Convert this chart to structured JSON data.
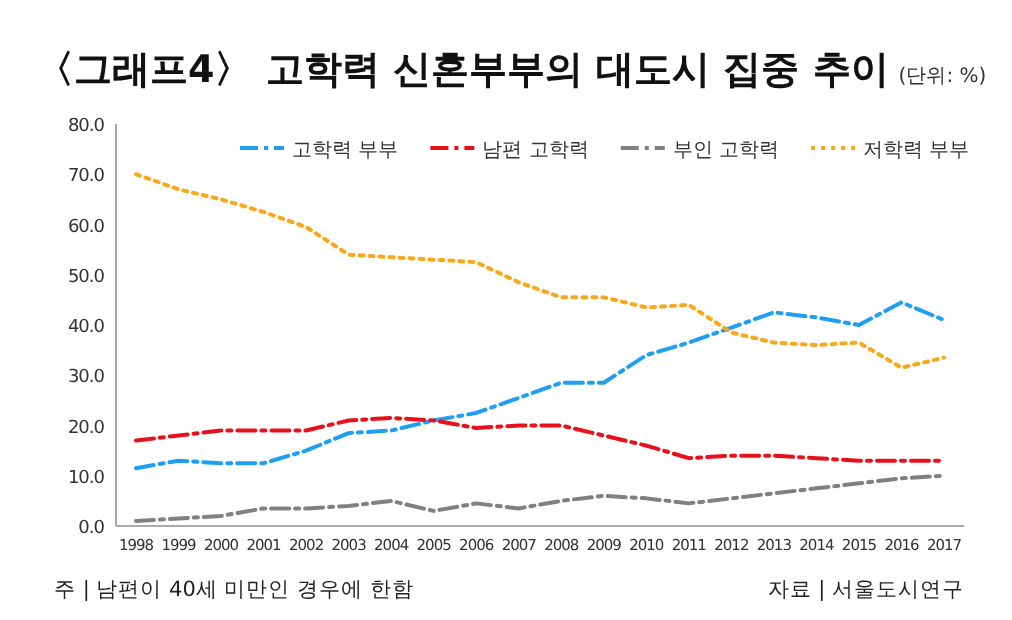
{
  "chart_data": {
    "type": "line",
    "title": "〈그래프4〉 고학력 신혼부부의 대도시 집중 추이",
    "subtitle": "(단위: %)",
    "categories": [
      "1998",
      "1999",
      "2000",
      "2001",
      "2002",
      "2003",
      "2004",
      "2005",
      "2006",
      "2007",
      "2008",
      "2009",
      "2010",
      "2011",
      "2012",
      "2013",
      "2014",
      "2015",
      "2016",
      "2017"
    ],
    "series": [
      {
        "name": "고학력 부부",
        "color": "#1e9ff2",
        "line_style": "dashed",
        "values": [
          11.5,
          13,
          12.5,
          12.5,
          15,
          18.5,
          19,
          21,
          22.5,
          25.5,
          28.5,
          28.5,
          34,
          36.5,
          39.5,
          42.5,
          41.5,
          40,
          44.5,
          41
        ]
      },
      {
        "name": "남편 고학력",
        "color": "#e8101a",
        "line_style": "dashed",
        "values": [
          17,
          18,
          19,
          19,
          19,
          21,
          21.5,
          21,
          19.5,
          20,
          20,
          18,
          16,
          13.5,
          14,
          14,
          13.5,
          13,
          13,
          13
        ]
      },
      {
        "name": "부인 고학력",
        "color": "#808080",
        "line_style": "dashed",
        "values": [
          1,
          1.5,
          2,
          3.5,
          3.5,
          4,
          5,
          3,
          4.5,
          3.5,
          5,
          6,
          5.5,
          4.5,
          5.5,
          6.5,
          7.5,
          8.5,
          9.5,
          10
        ]
      },
      {
        "name": "저학력 부부",
        "color": "#f7a81b",
        "line_style": "dotted",
        "values": [
          70,
          67,
          65,
          62.5,
          59.5,
          54,
          53.5,
          53,
          52.5,
          48.5,
          45.5,
          45.5,
          43.5,
          44,
          38.5,
          36.5,
          36,
          36.5,
          31.5,
          33.5
        ]
      }
    ],
    "ylim": [
      0,
      80
    ],
    "yticks": [
      {
        "value": 0,
        "label": "0.0"
      },
      {
        "value": 10,
        "label": "10.0"
      },
      {
        "value": 20,
        "label": "20.0"
      },
      {
        "value": 30,
        "label": "30.0"
      },
      {
        "value": 40,
        "label": "40.0"
      },
      {
        "value": 50,
        "label": "50.0"
      },
      {
        "value": 60,
        "label": "60.0"
      },
      {
        "value": 70,
        "label": "70.0"
      },
      {
        "value": 80,
        "label": "80.0"
      }
    ],
    "grid": false,
    "legend": "top",
    "annotations": [
      "주 | 남편이 40세 미만인 경우에 한함",
      "자료 | 서울도시연구"
    ]
  }
}
